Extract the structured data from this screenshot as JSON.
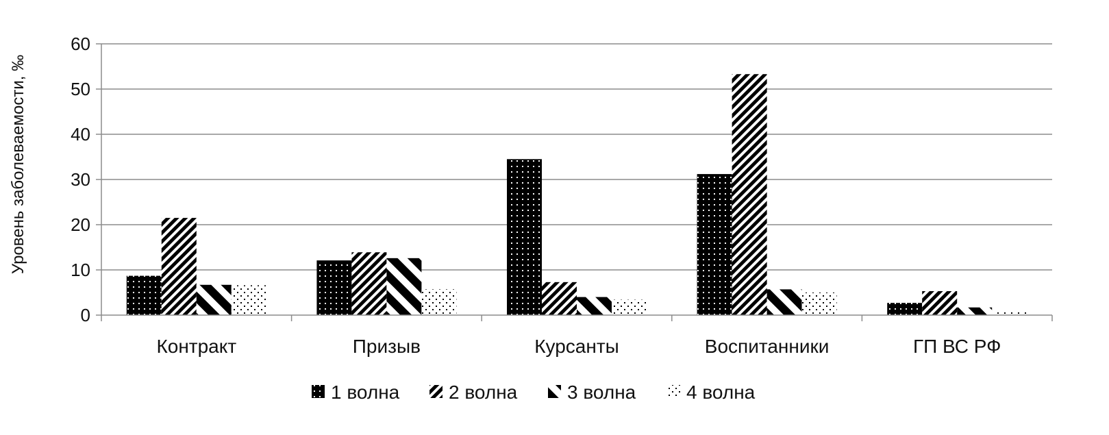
{
  "chart_data": {
    "type": "bar",
    "ylabel": "Уровень заболеваемости, ‰",
    "xlabel": "",
    "ylim": [
      0,
      60
    ],
    "yticks": [
      0,
      10,
      20,
      30,
      40,
      50,
      60
    ],
    "grid": true,
    "legend_position": "bottom",
    "categories": [
      "Контракт",
      "Призыв",
      "Курсанты",
      "Воспитанники",
      "ГП ВС РФ"
    ],
    "series": [
      {
        "name": "1 волна",
        "pattern": "dots-on-black",
        "values": [
          8.7,
          12.1,
          34.5,
          31.2,
          2.7
        ]
      },
      {
        "name": "2 волна",
        "pattern": "diagonal-stripes",
        "values": [
          21.5,
          13.9,
          7.3,
          53.3,
          5.3
        ]
      },
      {
        "name": "3 волна",
        "pattern": "wide-diagonal-stripes",
        "values": [
          6.7,
          12.6,
          4.0,
          5.7,
          1.7
        ]
      },
      {
        "name": "4 волна",
        "pattern": "sparse-dots",
        "values": [
          6.6,
          5.7,
          3.4,
          5.0,
          0.8
        ]
      }
    ],
    "colors": {
      "axis": "#8c8c8c",
      "grid": "#8c8c8c",
      "bar": "#000000"
    }
  }
}
